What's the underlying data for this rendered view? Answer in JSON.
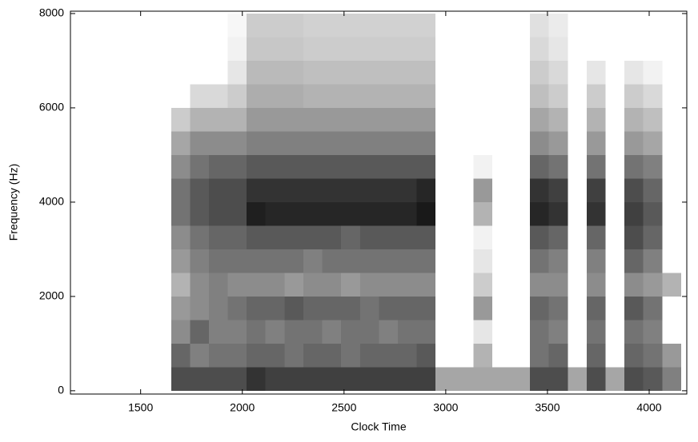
{
  "chart_data": {
    "type": "heatmap",
    "xlabel": "Clock Time",
    "ylabel": "Frequency (Hz)",
    "xlim": [
      1155,
      4185
    ],
    "ylim": [
      -70,
      8050
    ],
    "xticks": [
      1500,
      2000,
      2500,
      3000,
      3500,
      4000
    ],
    "yticks": [
      0,
      2000,
      4000,
      6000,
      8000
    ],
    "bins": [
      1650,
      1743,
      1836,
      1929,
      2021,
      2114,
      2207,
      2300,
      2393,
      2486,
      2579,
      2671,
      2764,
      2857,
      2950,
      3043,
      3136,
      3228,
      3321,
      3414,
      3507,
      3600,
      3693,
      3786,
      3879,
      3971,
      4064,
      4157
    ],
    "ybins": [
      0,
      500,
      1000,
      1500,
      2000,
      2500,
      3000,
      3500,
      4000,
      4500,
      5000,
      5500,
      6000,
      6500,
      7000,
      7500,
      8000
    ],
    "values": [
      [
        0.7,
        0.6,
        0.45,
        0.4,
        0.3,
        0.4,
        0.45,
        0.55,
        0.55,
        0.45,
        0.35,
        0.2,
        0,
        0,
        0,
        0
      ],
      [
        0.7,
        0.5,
        0.6,
        0.45,
        0.45,
        0.5,
        0.55,
        0.65,
        0.65,
        0.55,
        0.45,
        0.3,
        0.15,
        0,
        0,
        0
      ],
      [
        0.7,
        0.55,
        0.5,
        0.5,
        0.5,
        0.55,
        0.6,
        0.7,
        0.7,
        0.6,
        0.45,
        0.3,
        0.15,
        0,
        0,
        0
      ],
      [
        0.7,
        0.55,
        0.5,
        0.55,
        0.45,
        0.55,
        0.6,
        0.7,
        0.7,
        0.6,
        0.45,
        0.3,
        0.2,
        0.1,
        0.05,
        0.03
      ],
      [
        0.8,
        0.6,
        0.55,
        0.6,
        0.45,
        0.55,
        0.65,
        0.88,
        0.8,
        0.65,
        0.5,
        0.4,
        0.32,
        0.27,
        0.22,
        0.2
      ],
      [
        0.75,
        0.6,
        0.5,
        0.6,
        0.45,
        0.55,
        0.65,
        0.85,
        0.8,
        0.65,
        0.5,
        0.4,
        0.32,
        0.27,
        0.22,
        0.2
      ],
      [
        0.75,
        0.55,
        0.55,
        0.65,
        0.4,
        0.55,
        0.65,
        0.85,
        0.8,
        0.65,
        0.5,
        0.4,
        0.32,
        0.27,
        0.22,
        0.2
      ],
      [
        0.75,
        0.6,
        0.55,
        0.6,
        0.45,
        0.5,
        0.65,
        0.85,
        0.8,
        0.65,
        0.5,
        0.4,
        0.3,
        0.25,
        0.2,
        0.18
      ],
      [
        0.75,
        0.6,
        0.5,
        0.6,
        0.45,
        0.55,
        0.65,
        0.85,
        0.8,
        0.65,
        0.5,
        0.4,
        0.3,
        0.25,
        0.2,
        0.18
      ],
      [
        0.75,
        0.55,
        0.55,
        0.6,
        0.4,
        0.55,
        0.6,
        0.85,
        0.8,
        0.65,
        0.5,
        0.4,
        0.3,
        0.25,
        0.2,
        0.18
      ],
      [
        0.75,
        0.6,
        0.55,
        0.55,
        0.45,
        0.55,
        0.65,
        0.85,
        0.8,
        0.65,
        0.5,
        0.4,
        0.3,
        0.25,
        0.2,
        0.18
      ],
      [
        0.75,
        0.6,
        0.5,
        0.6,
        0.45,
        0.55,
        0.65,
        0.85,
        0.8,
        0.65,
        0.5,
        0.4,
        0.3,
        0.25,
        0.2,
        0.18
      ],
      [
        0.75,
        0.6,
        0.55,
        0.6,
        0.45,
        0.55,
        0.65,
        0.85,
        0.8,
        0.65,
        0.5,
        0.4,
        0.3,
        0.25,
        0.2,
        0.18
      ],
      [
        0.75,
        0.65,
        0.55,
        0.6,
        0.45,
        0.55,
        0.65,
        0.9,
        0.85,
        0.65,
        0.5,
        0.4,
        0.3,
        0.25,
        0.2,
        0.18
      ],
      [
        0.35,
        0,
        0,
        0,
        0,
        0,
        0,
        0,
        0,
        0,
        0,
        0,
        0,
        0,
        0,
        0
      ],
      [
        0.35,
        0,
        0,
        0,
        0,
        0,
        0,
        0,
        0,
        0,
        0,
        0,
        0,
        0,
        0,
        0
      ],
      [
        0.35,
        0.3,
        0.1,
        0.4,
        0.2,
        0.1,
        0.05,
        0.3,
        0.4,
        0.05,
        0,
        0,
        0,
        0,
        0,
        0
      ],
      [
        0.35,
        0,
        0,
        0,
        0,
        0,
        0,
        0,
        0,
        0,
        0,
        0,
        0,
        0,
        0,
        0
      ],
      [
        0.35,
        0,
        0,
        0,
        0,
        0,
        0,
        0,
        0,
        0,
        0,
        0,
        0,
        0,
        0,
        0
      ],
      [
        0.7,
        0.55,
        0.55,
        0.6,
        0.45,
        0.55,
        0.65,
        0.85,
        0.8,
        0.6,
        0.45,
        0.35,
        0.25,
        0.2,
        0.15,
        0.12
      ],
      [
        0.7,
        0.6,
        0.5,
        0.55,
        0.45,
        0.5,
        0.6,
        0.8,
        0.75,
        0.55,
        0.4,
        0.3,
        0.2,
        0.15,
        0.1,
        0.08
      ],
      [
        0.35,
        0,
        0,
        0,
        0,
        0,
        0,
        0,
        0,
        0,
        0,
        0,
        0,
        0,
        0,
        0
      ],
      [
        0.7,
        0.6,
        0.55,
        0.6,
        0.45,
        0.5,
        0.6,
        0.8,
        0.75,
        0.55,
        0.4,
        0.3,
        0.2,
        0.1,
        0,
        0
      ],
      [
        0.35,
        0,
        0,
        0,
        0,
        0,
        0,
        0,
        0,
        0,
        0,
        0,
        0,
        0,
        0,
        0
      ],
      [
        0.7,
        0.6,
        0.55,
        0.65,
        0.45,
        0.6,
        0.7,
        0.75,
        0.7,
        0.55,
        0.4,
        0.3,
        0.2,
        0.1,
        0,
        0
      ],
      [
        0.65,
        0.55,
        0.5,
        0.55,
        0.4,
        0.5,
        0.6,
        0.65,
        0.6,
        0.5,
        0.35,
        0.25,
        0.15,
        0.05,
        0,
        0
      ],
      [
        0.5,
        0.4,
        0,
        0,
        0.3,
        0,
        0,
        0,
        0,
        0,
        0,
        0,
        0,
        0,
        0,
        0
      ]
    ]
  }
}
